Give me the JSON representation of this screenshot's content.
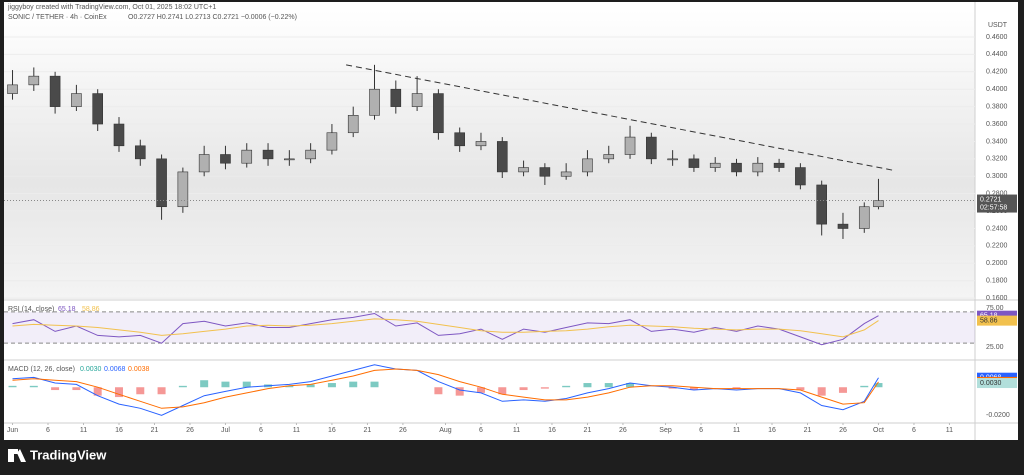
{
  "header": {
    "credit": "jiggyboy created with TradingView.com, Oct 01, 2025 18:02 UTC+1",
    "symbol": "SONIC / TETHER · 4h · CoinEx",
    "ohlc": "O0.2727 H0.2741 L0.2713 C0.2721 −0.0006 (−0.22%)"
  },
  "footer": {
    "brand": "TradingView"
  },
  "chart_data": [
    {
      "type": "candlestick",
      "unit": "USDT",
      "countdown": "02:57:58",
      "x": [
        0,
        3,
        6,
        9,
        12,
        15,
        18,
        21,
        24,
        27,
        30,
        33,
        36,
        39,
        42,
        45,
        48,
        51,
        54,
        57,
        60,
        63,
        66,
        69,
        72,
        75,
        78,
        81,
        84,
        87,
        90,
        93,
        96,
        99,
        102,
        105,
        108,
        111,
        114,
        117,
        120,
        122
      ],
      "open": [
        0.395,
        0.405,
        0.415,
        0.38,
        0.395,
        0.36,
        0.335,
        0.32,
        0.265,
        0.305,
        0.325,
        0.315,
        0.33,
        0.32,
        0.32,
        0.33,
        0.35,
        0.37,
        0.4,
        0.38,
        0.395,
        0.35,
        0.335,
        0.34,
        0.305,
        0.31,
        0.3,
        0.305,
        0.32,
        0.325,
        0.345,
        0.32,
        0.32,
        0.31,
        0.315,
        0.305,
        0.315,
        0.31,
        0.29,
        0.245,
        0.24,
        0.265
      ],
      "high": [
        0.422,
        0.425,
        0.42,
        0.405,
        0.4,
        0.368,
        0.342,
        0.325,
        0.31,
        0.335,
        0.335,
        0.338,
        0.338,
        0.33,
        0.338,
        0.36,
        0.38,
        0.428,
        0.41,
        0.415,
        0.4,
        0.356,
        0.35,
        0.345,
        0.318,
        0.315,
        0.315,
        0.33,
        0.335,
        0.358,
        0.35,
        0.33,
        0.325,
        0.322,
        0.32,
        0.322,
        0.32,
        0.315,
        0.295,
        0.258,
        0.27,
        0.297
      ],
      "low": [
        0.388,
        0.398,
        0.372,
        0.375,
        0.352,
        0.328,
        0.312,
        0.25,
        0.258,
        0.3,
        0.308,
        0.31,
        0.312,
        0.312,
        0.315,
        0.325,
        0.345,
        0.365,
        0.372,
        0.375,
        0.342,
        0.328,
        0.33,
        0.298,
        0.3,
        0.29,
        0.296,
        0.3,
        0.315,
        0.32,
        0.314,
        0.312,
        0.305,
        0.305,
        0.3,
        0.3,
        0.305,
        0.285,
        0.232,
        0.228,
        0.235,
        0.262
      ],
      "close": [
        0.405,
        0.415,
        0.38,
        0.395,
        0.36,
        0.335,
        0.32,
        0.265,
        0.305,
        0.325,
        0.315,
        0.33,
        0.32,
        0.32,
        0.33,
        0.35,
        0.37,
        0.4,
        0.38,
        0.395,
        0.35,
        0.335,
        0.34,
        0.305,
        0.31,
        0.3,
        0.305,
        0.32,
        0.325,
        0.345,
        0.32,
        0.32,
        0.31,
        0.315,
        0.305,
        0.315,
        0.31,
        0.29,
        0.245,
        0.24,
        0.265,
        0.2721
      ],
      "up_color": "#b0b0b0",
      "down_color": "#4a4a4a",
      "trendline": {
        "x": [
          47,
          124
        ],
        "y": [
          0.428,
          0.307
        ]
      },
      "xlim": [
        -1.2,
        135.6
      ],
      "ylim": [
        0.159,
        0.491
      ],
      "xticks": [
        {
          "value": 0,
          "label": "Jun"
        },
        {
          "value": 5,
          "label": "6"
        },
        {
          "value": 10,
          "label": "11"
        },
        {
          "value": 15,
          "label": "16"
        },
        {
          "value": 20,
          "label": "21"
        },
        {
          "value": 25,
          "label": "26"
        },
        {
          "value": 30,
          "label": "Jul"
        },
        {
          "value": 35,
          "label": "6"
        },
        {
          "value": 40,
          "label": "11"
        },
        {
          "value": 45,
          "label": "16"
        },
        {
          "value": 50,
          "label": "21"
        },
        {
          "value": 55,
          "label": "26"
        },
        {
          "value": 61,
          "label": "Aug"
        },
        {
          "value": 66,
          "label": "6"
        },
        {
          "value": 71,
          "label": "11"
        },
        {
          "value": 76,
          "label": "16"
        },
        {
          "value": 81,
          "label": "21"
        },
        {
          "value": 86,
          "label": "26"
        },
        {
          "value": 92,
          "label": "Sep"
        },
        {
          "value": 97,
          "label": "6"
        },
        {
          "value": 102,
          "label": "11"
        },
        {
          "value": 107,
          "label": "16"
        },
        {
          "value": 112,
          "label": "21"
        },
        {
          "value": 117,
          "label": "26"
        },
        {
          "value": 122,
          "label": "Oct"
        },
        {
          "value": 127,
          "label": "6"
        },
        {
          "value": 132,
          "label": "11"
        }
      ],
      "yticks": [
        {
          "value": 0.46,
          "label": "0.4600"
        },
        {
          "value": 0.44,
          "label": "0.4400"
        },
        {
          "value": 0.42,
          "label": "0.4200"
        },
        {
          "value": 0.4,
          "label": "0.4000"
        },
        {
          "value": 0.38,
          "label": "0.3800"
        },
        {
          "value": 0.36,
          "label": "0.3600"
        },
        {
          "value": 0.34,
          "label": "0.3400"
        },
        {
          "value": 0.32,
          "label": "0.3200"
        },
        {
          "value": 0.3,
          "label": "0.3000"
        },
        {
          "value": 0.28,
          "label": "0.2800"
        },
        {
          "value": 0.26,
          "label": "0.2600"
        },
        {
          "value": 0.24,
          "label": "0.2400"
        },
        {
          "value": 0.22,
          "label": "0.2200"
        },
        {
          "value": 0.2,
          "label": "0.2000"
        },
        {
          "value": 0.18,
          "label": "0.1800"
        },
        {
          "value": 0.16,
          "label": "0.1600"
        }
      ]
    },
    {
      "type": "rsi",
      "title": "RSI (14, close)",
      "ylim": [
        11,
        82.7
      ],
      "bands": [
        70,
        30
      ],
      "yticks": [
        {
          "value": 75,
          "label": "75.00"
        },
        {
          "value": 25,
          "label": "25.00"
        }
      ],
      "series": [
        {
          "name": "RSI",
          "color": "#7e57c2",
          "values": [
            55,
            60,
            45,
            52,
            40,
            38,
            40,
            30,
            55,
            58,
            52,
            56,
            50,
            50,
            55,
            60,
            63,
            68,
            52,
            56,
            40,
            42,
            48,
            35,
            48,
            44,
            50,
            56,
            55,
            60,
            45,
            48,
            44,
            50,
            45,
            52,
            48,
            38,
            28,
            35,
            55,
            65.18
          ]
        },
        {
          "name": "MA",
          "color": "#f2c14e",
          "values": [
            52,
            54,
            53,
            52,
            50,
            47,
            44,
            40,
            42,
            45,
            48,
            52,
            53,
            52,
            53,
            55,
            58,
            61,
            60,
            58,
            54,
            50,
            46,
            44,
            44,
            45,
            46,
            48,
            51,
            53,
            52,
            51,
            49,
            48,
            47,
            48,
            48,
            46,
            42,
            38,
            47,
            58.86
          ]
        }
      ]
    },
    {
      "type": "macd",
      "title": "MACD (12, 26, close)",
      "ylim": [
        -0.0255,
        0.018
      ],
      "yticks": [
        {
          "value": -0.02,
          "label": "-0.0200"
        }
      ],
      "histogram": {
        "values": [
          0.001,
          0.001,
          -0.002,
          -0.002,
          -0.006,
          -0.007,
          -0.005,
          -0.005,
          0.001,
          0.005,
          0.004,
          0.004,
          0.002,
          0.001,
          0.002,
          0.003,
          0.004,
          0.004,
          0,
          0,
          -0.005,
          -0.006,
          -0.004,
          -0.005,
          -0.002,
          -0.001,
          0.001,
          0.003,
          0.003,
          0.003,
          0,
          -0.001,
          -0.002,
          0,
          -0.001,
          0,
          0,
          -0.002,
          -0.006,
          -0.004,
          0.001,
          0.003
        ],
        "value_labels": [
          null,
          null,
          null,
          null,
          null,
          null,
          null,
          null,
          null,
          null,
          null,
          null,
          null,
          null,
          null,
          null,
          null,
          null,
          null,
          null,
          null,
          null,
          null,
          null,
          null,
          null,
          null,
          null,
          null,
          null,
          null,
          null,
          null,
          null,
          null,
          null,
          null,
          null,
          null,
          null,
          null,
          "0.0030"
        ],
        "up_color": "#26a69a",
        "down_color": "#ef5350"
      },
      "series": [
        {
          "name": "MACD",
          "color": "#2962ff",
          "values": [
            0.006,
            0.007,
            0.003,
            0.002,
            -0.006,
            -0.012,
            -0.015,
            -0.02,
            -0.013,
            -0.006,
            -0.003,
            0,
            0.001,
            0.002,
            0.004,
            0.008,
            0.012,
            0.016,
            0.013,
            0.012,
            0.004,
            -0.002,
            -0.004,
            -0.01,
            -0.009,
            -0.01,
            -0.008,
            -0.004,
            -0.001,
            0.003,
            0.001,
            0,
            -0.002,
            -0.001,
            -0.002,
            -0.001,
            -0.001,
            -0.004,
            -0.013,
            -0.016,
            -0.01,
            0.0068
          ]
        },
        {
          "name": "Signal",
          "color": "#ff6d00",
          "values": [
            0.005,
            0.006,
            0.005,
            0.004,
            0,
            -0.005,
            -0.01,
            -0.015,
            -0.014,
            -0.011,
            -0.007,
            -0.004,
            -0.001,
            0.001,
            0.002,
            0.005,
            0.008,
            0.012,
            0.013,
            0.012,
            0.009,
            0.004,
            0,
            -0.005,
            -0.007,
            -0.009,
            -0.009,
            -0.007,
            -0.004,
            0,
            0.001,
            0.001,
            0,
            -0.001,
            -0.001,
            -0.001,
            -0.001,
            -0.002,
            -0.007,
            -0.012,
            -0.011,
            0.0038
          ]
        }
      ]
    }
  ]
}
